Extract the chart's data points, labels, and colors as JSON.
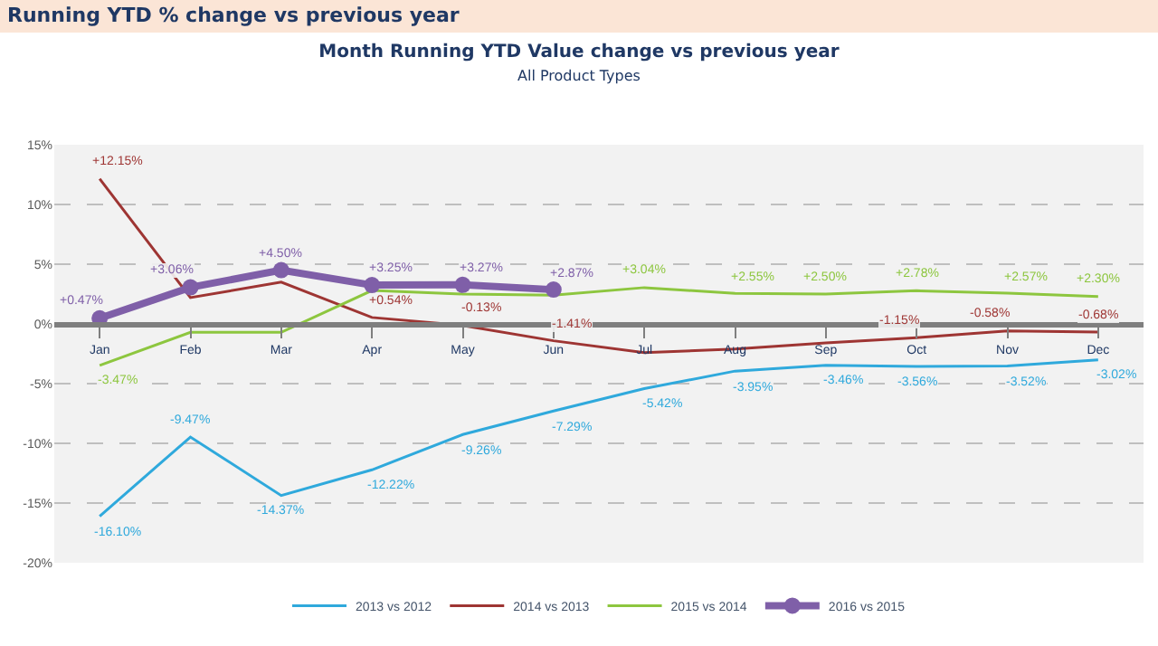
{
  "chart_data": {
    "type": "line",
    "title": "Month Running YTD Value change vs previous year",
    "subtitle": "All Product Types",
    "annotations": [
      "Running YTD % change vs previous year"
    ],
    "categories": [
      "Jan",
      "Feb",
      "Mar",
      "Apr",
      "May",
      "Jun",
      "Jul",
      "Aug",
      "Sep",
      "Oct",
      "Nov",
      "Dec"
    ],
    "series": [
      {
        "name": "2013 vs 2012",
        "color": "#2fa9dc",
        "marker": "none",
        "values": [
          -16.1,
          -9.47,
          -14.37,
          -12.22,
          -9.26,
          -7.29,
          -5.42,
          -3.95,
          -3.46,
          -3.56,
          -3.52,
          -3.02
        ],
        "value_labels": [
          "-16.10%",
          "-9.47%",
          "-14.37%",
          "-12.22%",
          "-9.26%",
          "-7.29%",
          "-5.42%",
          "-3.95%",
          "-3.46%",
          "-3.56%",
          "-3.52%",
          "-3.02%"
        ]
      },
      {
        "name": "2014 vs 2013",
        "color": "#9e3533",
        "marker": "none",
        "values": [
          12.15,
          2.2,
          3.5,
          0.54,
          -0.13,
          -1.41,
          -2.4,
          -2.1,
          -1.6,
          -1.15,
          -0.58,
          -0.68
        ],
        "value_labels": [
          "+12.15%",
          null,
          null,
          "+0.54%",
          "-0.13%",
          "-1.41%",
          null,
          null,
          null,
          "-1.15%",
          "-0.58%",
          "-0.68%"
        ]
      },
      {
        "name": "2015 vs 2014",
        "color": "#8dc63f",
        "marker": "none",
        "values": [
          -3.47,
          -0.7,
          -0.7,
          2.8,
          2.5,
          2.4,
          3.04,
          2.55,
          2.5,
          2.78,
          2.57,
          2.3
        ],
        "value_labels": [
          "-3.47%",
          null,
          null,
          null,
          null,
          null,
          "+3.04%",
          "+2.55%",
          "+2.50%",
          "+2.78%",
          "+2.57%",
          "+2.30%"
        ]
      },
      {
        "name": "2016 vs 2015",
        "color": "#7f5fa8",
        "marker": "circle",
        "values": [
          0.47,
          3.06,
          4.5,
          3.25,
          3.27,
          2.87,
          null,
          null,
          null,
          null,
          null,
          null
        ],
        "value_labels": [
          "+0.47%",
          "+3.06%",
          "+4.50%",
          "+3.25%",
          "+3.27%",
          "+2.87%",
          null,
          null,
          null,
          null,
          null,
          null
        ]
      }
    ],
    "ylim": [
      -20,
      15
    ],
    "yticks": [
      {
        "value": -20,
        "label": "-20%"
      },
      {
        "value": -15,
        "label": "-15%"
      },
      {
        "value": -10,
        "label": "-10%"
      },
      {
        "value": -5,
        "label": "-5%"
      },
      {
        "value": 0,
        "label": "0%"
      },
      {
        "value": 5,
        "label": "5%"
      },
      {
        "value": 10,
        "label": "10%"
      },
      {
        "value": 15,
        "label": "15%"
      }
    ],
    "grid": "y",
    "legend": "bottom",
    "line_style": "solid"
  }
}
